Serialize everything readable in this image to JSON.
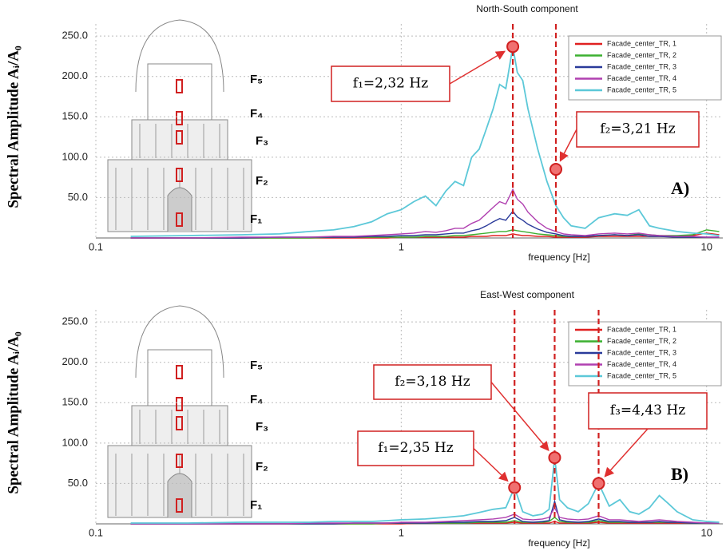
{
  "chart_data": [
    {
      "type": "line",
      "title": "North-South component",
      "x_label": "frequency [Hz]",
      "y_label": "Spectral Amplitude Aᵢ/A₀",
      "xscale": "log",
      "xlim": [
        0.1,
        11.3
      ],
      "xticks": [
        0.1,
        1,
        10
      ],
      "ylim": [
        0,
        265
      ],
      "yticks": [
        {
          "value": 50,
          "label": "50.0"
        },
        {
          "value": 100,
          "label": "100.0"
        },
        {
          "value": 150,
          "label": "150.0"
        },
        {
          "value": 200,
          "label": "200.0"
        },
        {
          "value": 250,
          "label": "250.0"
        }
      ],
      "grid": true,
      "legend": "upper right",
      "panel_label": "A)",
      "floor_labels": [
        "F₅",
        "F₄",
        "F₃",
        "F₂",
        "F₁"
      ],
      "x": [
        0.13,
        0.2,
        0.3,
        0.4,
        0.5,
        0.6,
        0.7,
        0.8,
        0.9,
        1.0,
        1.1,
        1.2,
        1.3,
        1.4,
        1.5,
        1.6,
        1.7,
        1.8,
        1.9,
        2.0,
        2.1,
        2.2,
        2.32,
        2.4,
        2.5,
        2.6,
        2.8,
        3.0,
        3.21,
        3.4,
        3.6,
        4.0,
        4.43,
        5.0,
        5.5,
        6.0,
        6.5,
        7.0,
        8.0,
        9.0,
        10.0,
        11.0
      ],
      "series": [
        {
          "name": "Facade_center_TR, 1",
          "color": "#e02020",
          "values": [
            0,
            0,
            0,
            0,
            0,
            0,
            0,
            0,
            0,
            1,
            1,
            1,
            1,
            1,
            1,
            1,
            2,
            2,
            2,
            3,
            3,
            3,
            5,
            4,
            3,
            3,
            2,
            2,
            1,
            1,
            1,
            1,
            2,
            2,
            2,
            2,
            2,
            2,
            2,
            3,
            6,
            4
          ]
        },
        {
          "name": "Facade_center_TR, 2",
          "color": "#3cb030",
          "values": [
            0,
            0,
            0,
            0,
            0,
            1,
            1,
            1,
            1,
            1,
            1,
            2,
            2,
            2,
            3,
            3,
            4,
            5,
            6,
            7,
            8,
            8,
            10,
            9,
            8,
            7,
            5,
            4,
            3,
            2,
            2,
            2,
            3,
            4,
            3,
            5,
            4,
            3,
            3,
            4,
            10,
            8
          ]
        },
        {
          "name": "Facade_center_TR, 3",
          "color": "#2a3a9a",
          "values": [
            0,
            0,
            0,
            1,
            1,
            1,
            1,
            2,
            2,
            3,
            3,
            4,
            4,
            5,
            6,
            6,
            9,
            11,
            15,
            20,
            24,
            22,
            33,
            26,
            22,
            17,
            11,
            7,
            5,
            3,
            2,
            2,
            3,
            4,
            3,
            4,
            2,
            2,
            1,
            1,
            1,
            1
          ]
        },
        {
          "name": "Facade_center_TR, 4",
          "color": "#b040b0",
          "values": [
            0,
            0,
            1,
            1,
            1,
            2,
            2,
            3,
            4,
            5,
            6,
            8,
            7,
            9,
            12,
            12,
            18,
            22,
            30,
            38,
            45,
            42,
            60,
            48,
            42,
            32,
            20,
            12,
            8,
            5,
            4,
            3,
            5,
            6,
            5,
            6,
            4,
            3,
            2,
            2,
            1,
            1
          ]
        },
        {
          "name": "Facade_center_TR, 5",
          "color": "#5cc8d8",
          "values": [
            2,
            3,
            4,
            5,
            8,
            10,
            14,
            20,
            30,
            35,
            45,
            52,
            40,
            58,
            70,
            65,
            100,
            110,
            135,
            160,
            190,
            185,
            237,
            205,
            195,
            160,
            110,
            70,
            40,
            25,
            15,
            12,
            25,
            30,
            28,
            35,
            15,
            12,
            8,
            6,
            5,
            3
          ]
        }
      ],
      "annotations": [
        {
          "label": "f₁=2,32 Hz",
          "x": 2.32,
          "y": 237
        },
        {
          "label": "f₂=3,21 Hz",
          "x": 3.21,
          "y": 85
        }
      ]
    },
    {
      "type": "line",
      "title": "East-West component",
      "x_label": "frequency [Hz]",
      "y_label": "Spectral Amplitude Aᵢ/A₀",
      "xscale": "log",
      "xlim": [
        0.1,
        11.3
      ],
      "xticks": [
        0.1,
        1,
        10
      ],
      "ylim": [
        0,
        265
      ],
      "yticks": [
        {
          "value": 50,
          "label": "50.0"
        },
        {
          "value": 100,
          "label": "100.0"
        },
        {
          "value": 150,
          "label": "150.0"
        },
        {
          "value": 200,
          "label": "200.0"
        },
        {
          "value": 250,
          "label": "250.0"
        }
      ],
      "grid": true,
      "legend": "upper right",
      "panel_label": "B)",
      "floor_labels": [
        "F₅",
        "F₄",
        "F₃",
        "F₂",
        "F₁"
      ],
      "x": [
        0.13,
        0.2,
        0.3,
        0.4,
        0.5,
        0.6,
        0.7,
        0.8,
        0.9,
        1.0,
        1.2,
        1.4,
        1.6,
        1.8,
        2.0,
        2.2,
        2.35,
        2.5,
        2.7,
        2.9,
        3.05,
        3.18,
        3.3,
        3.5,
        3.8,
        4.1,
        4.43,
        4.8,
        5.2,
        5.6,
        6.0,
        6.5,
        7.0,
        7.5,
        8.0,
        9.0,
        10.0,
        11.0
      ],
      "series": [
        {
          "name": "Facade_center_TR, 1",
          "color": "#e02020",
          "values": [
            0,
            0,
            0,
            0,
            0,
            0,
            0,
            0,
            0,
            0,
            1,
            1,
            1,
            1,
            1,
            1,
            2,
            1,
            1,
            1,
            1,
            3,
            1,
            1,
            1,
            1,
            2,
            1,
            1,
            1,
            1,
            1,
            1,
            1,
            1,
            1,
            1,
            1
          ]
        },
        {
          "name": "Facade_center_TR, 2",
          "color": "#3cb030",
          "values": [
            0,
            0,
            0,
            0,
            0,
            0,
            0,
            0,
            1,
            1,
            1,
            1,
            1,
            2,
            2,
            2,
            4,
            2,
            2,
            2,
            3,
            8,
            3,
            2,
            2,
            2,
            4,
            2,
            2,
            2,
            2,
            2,
            2,
            2,
            2,
            1,
            1,
            1
          ]
        },
        {
          "name": "Facade_center_TR, 3",
          "color": "#2a3a9a",
          "values": [
            0,
            0,
            0,
            0,
            0,
            0,
            1,
            1,
            1,
            1,
            1,
            2,
            2,
            3,
            3,
            4,
            8,
            3,
            2,
            3,
            4,
            28,
            5,
            3,
            2,
            3,
            6,
            3,
            3,
            2,
            2,
            2,
            3,
            2,
            2,
            1,
            1,
            1
          ]
        },
        {
          "name": "Facade_center_TR, 4",
          "color": "#b040b0",
          "values": [
            0,
            0,
            0,
            0,
            1,
            1,
            1,
            1,
            1,
            2,
            2,
            3,
            4,
            5,
            6,
            8,
            12,
            6,
            5,
            6,
            8,
            20,
            8,
            6,
            5,
            6,
            10,
            5,
            5,
            4,
            3,
            4,
            5,
            4,
            3,
            2,
            1,
            1
          ]
        },
        {
          "name": "Facade_center_TR, 5",
          "color": "#5cc8d8",
          "values": [
            1,
            1,
            2,
            2,
            2,
            3,
            3,
            3,
            4,
            5,
            6,
            8,
            10,
            14,
            18,
            20,
            45,
            15,
            10,
            12,
            18,
            82,
            30,
            20,
            15,
            25,
            50,
            22,
            30,
            15,
            12,
            20,
            35,
            25,
            15,
            5,
            3,
            2
          ]
        }
      ],
      "annotations": [
        {
          "label": "f₁=2,35 Hz",
          "x": 2.35,
          "y": 45
        },
        {
          "label": "f₂=3,18 Hz",
          "x": 3.18,
          "y": 82
        },
        {
          "label": "f₃=4,43 Hz",
          "x": 4.43,
          "y": 50
        }
      ]
    }
  ]
}
